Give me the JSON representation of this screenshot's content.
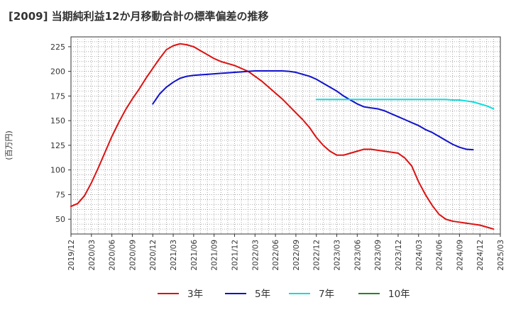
{
  "chart_data": {
    "type": "line",
    "title": "[2009]  当期純利益12か月移動合計の標準偏差の推移",
    "ylabel": "(百万円)",
    "xlabel": "",
    "ylim": [
      35,
      235
    ],
    "yticks": [
      50,
      75,
      100,
      125,
      150,
      175,
      200,
      225
    ],
    "x_categories": [
      "2019/12",
      "2020/03",
      "2020/06",
      "2020/09",
      "2020/12",
      "2021/03",
      "2021/06",
      "2021/09",
      "2021/12",
      "2022/03",
      "2022/06",
      "2022/09",
      "2022/12",
      "2023/03",
      "2023/06",
      "2023/09",
      "2023/12",
      "2024/03",
      "2024/06",
      "2024/09",
      "2024/12",
      "2025/03"
    ],
    "grid": true,
    "legend_position": "bottom",
    "series": [
      {
        "name": "3年",
        "color": "#dd1111",
        "start_index": 0,
        "values": [
          63,
          66,
          74,
          87,
          102,
          118,
          134,
          148,
          161,
          172,
          182,
          193,
          203,
          213,
          222,
          226,
          228,
          227,
          225,
          221,
          217,
          213,
          210,
          208,
          206,
          203,
          200,
          195,
          190,
          184,
          178,
          172,
          165,
          158,
          151,
          143,
          133,
          125,
          119,
          115,
          115,
          117,
          119,
          121,
          121,
          120,
          119,
          118,
          117,
          112,
          104,
          88,
          75,
          64,
          55,
          50,
          48,
          47,
          46,
          45,
          44,
          42,
          40
        ]
      },
      {
        "name": "5年",
        "color": "#1111cc",
        "start_index": 12,
        "values": [
          167,
          177,
          184,
          189,
          193,
          195,
          196,
          196.5,
          197,
          197.5,
          198,
          198.5,
          199,
          199.5,
          200,
          200.5,
          200.5,
          200.5,
          200.5,
          200.5,
          200,
          199,
          197,
          195,
          192,
          188,
          184,
          180,
          175,
          171,
          167,
          164,
          163,
          162,
          160,
          157,
          154,
          151,
          148,
          145,
          141,
          138,
          134,
          130,
          126,
          123,
          121,
          120.5
        ]
      },
      {
        "name": "7年",
        "color": "#11dddd",
        "start_index": 36,
        "values": [
          171.5,
          171.5,
          171.5,
          171.5,
          171.5,
          171.5,
          171.5,
          171.5,
          171.5,
          171.5,
          171.5,
          171.5,
          171.5,
          171.5,
          171.5,
          171.5,
          171.5,
          171.5,
          171.5,
          171.5,
          171,
          171,
          170,
          169,
          167,
          165,
          162
        ]
      },
      {
        "name": "10年",
        "color": "#228822",
        "start_index": 0,
        "values": []
      }
    ]
  }
}
